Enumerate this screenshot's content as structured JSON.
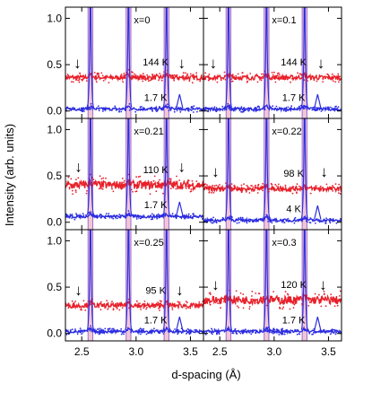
{
  "chart_data": {
    "type": "scatter",
    "xlabel": "d-spacing (Å)",
    "ylabel": "Intensity (arb. units)",
    "xlim": [
      2.35,
      3.62
    ],
    "ylim": [
      -0.08,
      1.12
    ],
    "x_ticks": [
      "2.5",
      "3.0",
      "3.5"
    ],
    "y_ticks": [
      "0.0",
      "0.5",
      "1.0"
    ],
    "layout": "3 rows x 2 columns, shared axes",
    "colors": {
      "high_T": "#e8202a",
      "low_T": "#2c2ce0",
      "peak_fill": "#f3c6d6"
    },
    "main_peaks_x": [
      2.58,
      2.93,
      3.28
    ],
    "marker_symbol": "↓",
    "panels": [
      {
        "label": "x=0",
        "high_T": "144 K",
        "low_T": "1.7 K",
        "high_T_level": 0.36,
        "low_T_level": 0.02,
        "arrows_x": [
          2.46,
          3.42
        ],
        "arrow_level": 0.52
      },
      {
        "label": "x=0.1",
        "high_T": "144 K",
        "low_T": "1.7 K",
        "high_T_level": 0.36,
        "low_T_level": 0.02,
        "arrows_x": [
          2.44,
          3.43
        ],
        "arrow_level": 0.52
      },
      {
        "label": "x=0.21",
        "high_T": "110 K",
        "low_T": "1.7 K",
        "high_T_level": 0.4,
        "low_T_level": 0.06,
        "arrows_x": [
          2.47,
          3.42
        ],
        "arrow_level": 0.6
      },
      {
        "label": "x=0.22",
        "high_T": "98 K",
        "low_T": "4 K",
        "high_T_level": 0.36,
        "low_T_level": 0.02,
        "arrows_x": [
          2.46,
          3.46
        ],
        "arrow_level": 0.55
      },
      {
        "label": "x=0.25",
        "high_T": "95 K",
        "low_T": "1.7 K",
        "high_T_level": 0.3,
        "low_T_level": 0.02,
        "arrows_x": [
          2.47,
          3.4
        ],
        "arrow_level": 0.47
      },
      {
        "label": "x=0.3",
        "high_T": "120 K",
        "low_T": "1.7 K",
        "high_T_level": 0.36,
        "low_T_level": 0.02,
        "arrows_x": [
          2.46,
          3.45
        ],
        "arrow_level": 0.53
      }
    ]
  }
}
